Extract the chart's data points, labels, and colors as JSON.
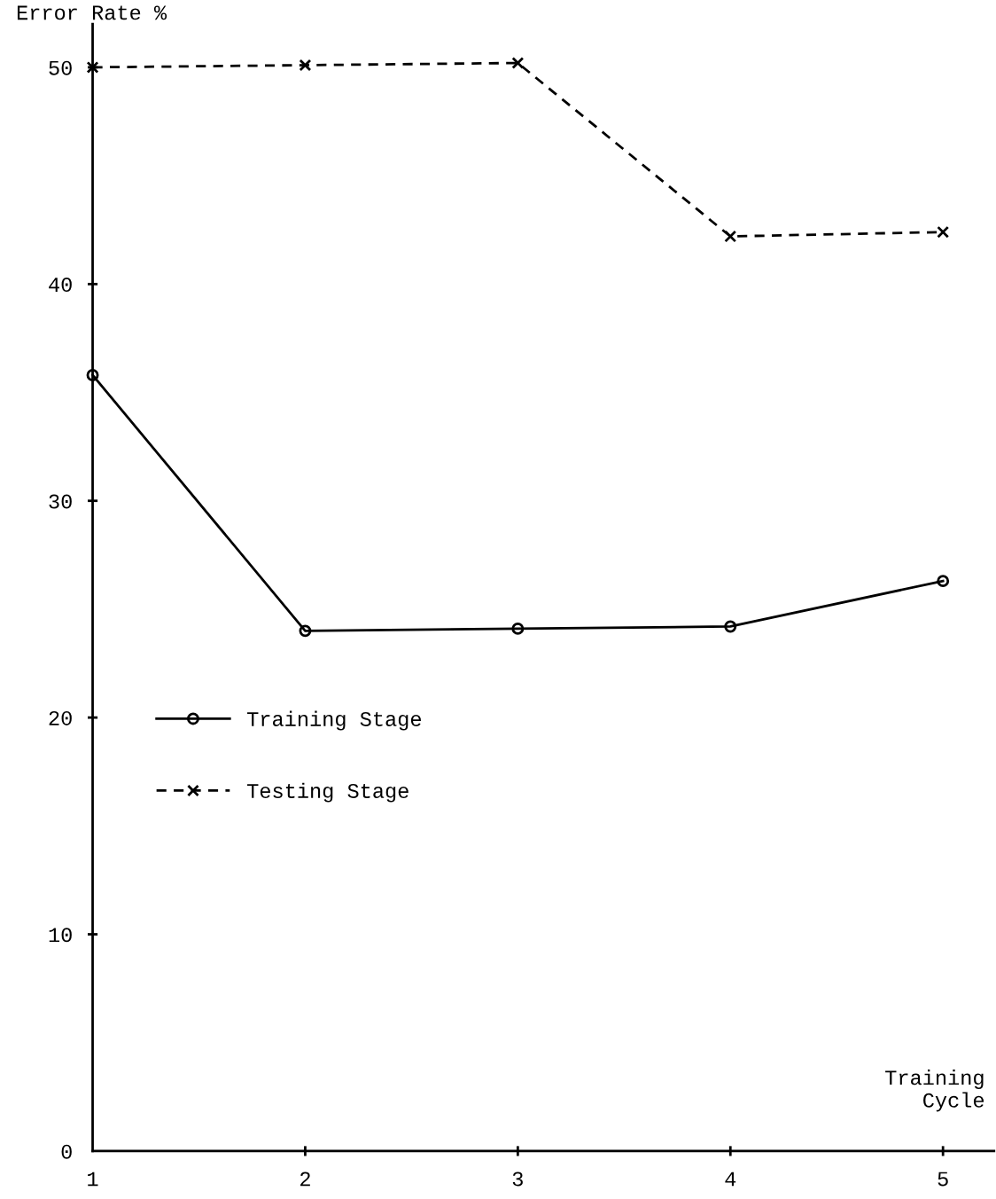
{
  "chart_data": {
    "type": "line",
    "xlabel": "Training\nCycle",
    "ylabel": "Error Rate %",
    "x": [
      1,
      2,
      3,
      4,
      5
    ],
    "xlim": [
      1,
      5.24
    ],
    "xticks": [
      1,
      2,
      3,
      4,
      5
    ],
    "ylim": [
      0,
      52
    ],
    "yticks": [
      0,
      10,
      20,
      30,
      40,
      50
    ],
    "series": [
      {
        "name": "Training Stage",
        "color": "#000000",
        "values": [
          35.8,
          24.0,
          24.1,
          24.2,
          26.3
        ],
        "line_style": "solid",
        "marker": "circle"
      },
      {
        "name": "Testing Stage",
        "color": "#000000",
        "values": [
          50.0,
          50.1,
          50.2,
          42.2,
          42.4
        ],
        "line_style": "dashed",
        "marker": "cross"
      }
    ],
    "legend": "center left",
    "grid": false
  }
}
